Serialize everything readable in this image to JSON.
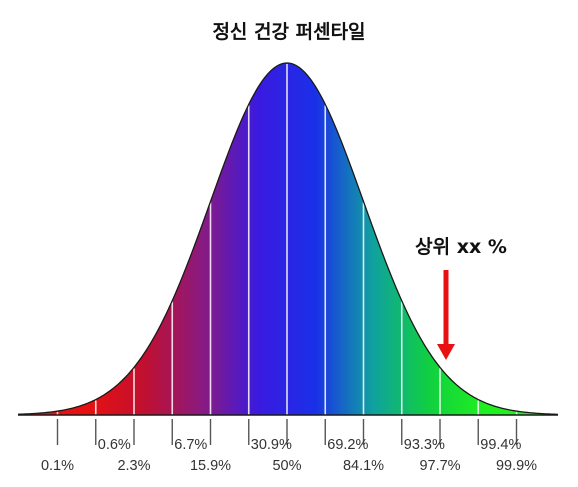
{
  "chart_data": {
    "type": "area",
    "title": "정신 건강 퍼센타일",
    "distribution": "normal",
    "x_sigma": [
      -4,
      -3.5,
      -3,
      -2.5,
      -2,
      -1.5,
      -1,
      -0.5,
      0,
      0.5,
      1,
      1.5,
      2,
      2.5,
      3,
      3.5,
      4
    ],
    "percentile_labels": [
      "0.1%",
      "0.6%",
      "2.3%",
      "6.7%",
      "15.9%",
      "30.9%",
      "50%",
      "69.2%",
      "84.1%",
      "93.3%",
      "97.7%",
      "99.4%",
      "99.9%"
    ],
    "percentile_sigma": [
      -3,
      -2.5,
      -2,
      -1.5,
      -1,
      -0.5,
      0,
      0.5,
      1,
      1.5,
      2,
      2.5,
      3
    ],
    "gradient_colors": [
      "#e81010",
      "#c01030",
      "#8a1a80",
      "#3a1ae0",
      "#1a30e8",
      "#10a0a0",
      "#10d040",
      "#20f020"
    ],
    "annotation": {
      "text": "상위 xx %",
      "sigma": 2,
      "arrow_color": "#e81010"
    },
    "grid": false,
    "legend": "none"
  }
}
